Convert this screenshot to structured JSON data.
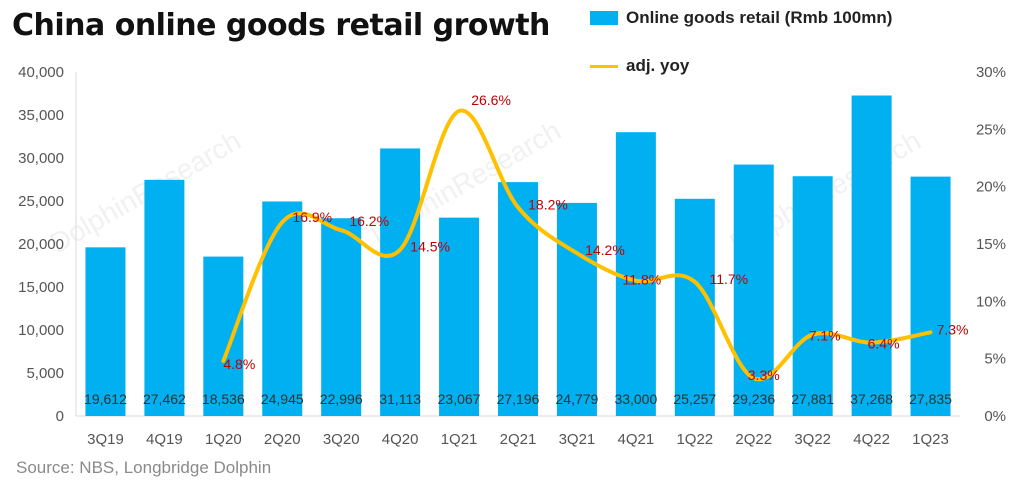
{
  "title": "China online goods retail growth",
  "source": "Source: NBS, Longbridge Dolphin",
  "watermark": "DolphinResearch",
  "chart_data": {
    "type": "bar+line",
    "categories": [
      "3Q19",
      "4Q19",
      "1Q20",
      "2Q20",
      "3Q20",
      "4Q20",
      "1Q21",
      "2Q21",
      "3Q21",
      "4Q21",
      "1Q22",
      "2Q22",
      "3Q22",
      "4Q22",
      "1Q23"
    ],
    "series": [
      {
        "name": "Online goods retail (Rmb 100mn)",
        "type": "bar",
        "axis": "left",
        "color": "#00B0F0",
        "values": [
          19612,
          27462,
          18536,
          24945,
          22996,
          31113,
          23067,
          27196,
          24779,
          33000,
          25257,
          29236,
          27881,
          37268,
          27835
        ],
        "labels": [
          "19,612",
          "27,462",
          "18,536",
          "24,945",
          "22,996",
          "31,113",
          "23,067",
          "27,196",
          "24,779",
          "33,000",
          "25,257",
          "29,236",
          "27,881",
          "37,268",
          "27,835"
        ]
      },
      {
        "name": "adj. yoy",
        "type": "line",
        "axis": "right",
        "color": "#FFC000",
        "values": [
          null,
          null,
          4.8,
          16.9,
          16.2,
          14.5,
          26.6,
          18.2,
          14.2,
          11.8,
          11.7,
          3.3,
          7.1,
          6.4,
          7.3
        ],
        "labels": [
          "",
          "",
          "4.8%",
          "16.9%",
          "16.2%",
          "14.5%",
          "26.6%",
          "18.2%",
          "14.2%",
          "11.8%",
          "11.7%",
          "3.3%",
          "7.1%",
          "6.4%",
          "7.3%"
        ]
      }
    ],
    "y_left": {
      "min": 0,
      "max": 40000,
      "ticks": [
        "0",
        "5,000",
        "10,000",
        "15,000",
        "20,000",
        "25,000",
        "30,000",
        "35,000",
        "40,000"
      ]
    },
    "y_right": {
      "min": 0,
      "max": 30,
      "ticks": [
        "0%",
        "5%",
        "10%",
        "15%",
        "20%",
        "25%",
        "30%"
      ]
    },
    "grid": false,
    "legend": "top-right"
  }
}
